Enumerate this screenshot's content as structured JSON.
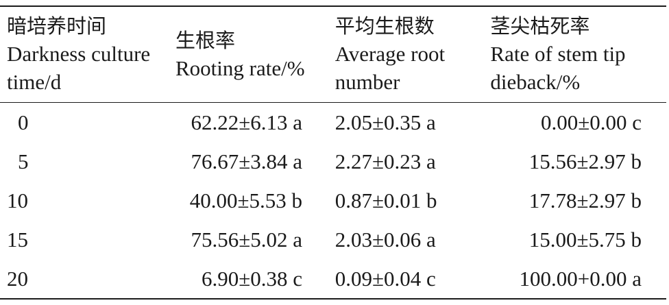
{
  "table": {
    "headers": [
      {
        "zh": "暗培养时间",
        "en": "Darkness culture time/d"
      },
      {
        "zh": "生根率",
        "en": "Rooting rate/%"
      },
      {
        "zh": "平均生根数",
        "en": "Average root number"
      },
      {
        "zh": "茎尖枯死率",
        "en": "Rate of stem tip dieback/%"
      }
    ],
    "rows": [
      {
        "time": "0",
        "rooting_rate": "62.22±6.13 a",
        "avg_root_number": "2.05±0.35 a",
        "dieback_rate": "0.00±0.00 c"
      },
      {
        "time": "5",
        "rooting_rate": "76.67±3.84 a",
        "avg_root_number": "2.27±0.23 a",
        "dieback_rate": "15.56±2.97 b"
      },
      {
        "time": "10",
        "rooting_rate": "40.00±5.53 b",
        "avg_root_number": "0.87±0.01 b",
        "dieback_rate": "17.78±2.97 b"
      },
      {
        "time": "15",
        "rooting_rate": "75.56±5.02 a",
        "avg_root_number": "2.03±0.06 a",
        "dieback_rate": "15.00±5.75 b"
      },
      {
        "time": "20",
        "rooting_rate": "6.90±0.38 c",
        "avg_root_number": "0.09±0.04 c",
        "dieback_rate": "100.00+0.00 a"
      }
    ]
  }
}
